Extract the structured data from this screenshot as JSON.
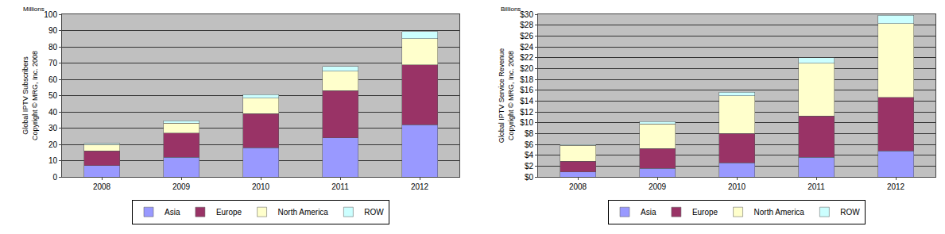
{
  "chart_data": [
    {
      "type": "bar",
      "stacked": true,
      "grid": true,
      "legend": "bottom",
      "annotations": [
        "Millions"
      ],
      "ylabel": [
        "Global IPTV Subscribers",
        "Copyright © MRG, Inc. 2008"
      ],
      "categories": [
        "2008",
        "2009",
        "2010",
        "2011",
        "2012"
      ],
      "series": [
        {
          "name": "Asia",
          "color": "#9999FF",
          "values": [
            7,
            12,
            18,
            24,
            32
          ]
        },
        {
          "name": "Europe",
          "color": "#993366",
          "values": [
            9,
            15,
            21,
            29,
            37
          ]
        },
        {
          "name": "North America",
          "color": "#FFFFCC",
          "values": [
            4,
            6,
            9.5,
            12,
            16
          ]
        },
        {
          "name": "ROW",
          "color": "#CCFFFF",
          "values": [
            0.5,
            1.5,
            2,
            3,
            4.5
          ]
        }
      ],
      "ylim": [
        0,
        100
      ],
      "yticks": [
        0,
        10,
        20,
        30,
        40,
        50,
        60,
        70,
        80,
        90,
        100
      ]
    },
    {
      "type": "bar",
      "stacked": true,
      "grid": true,
      "legend": "bottom",
      "annotations": [
        "Billions"
      ],
      "ylabel": [
        "Global IPTV Service Revenue",
        "Copyright © MRG, Inc. 2008"
      ],
      "categories": [
        "2008",
        "2009",
        "2010",
        "2011",
        "2012"
      ],
      "series": [
        {
          "name": "Asia",
          "color": "#9999FF",
          "values": [
            0.9,
            1.6,
            2.6,
            3.6,
            4.8
          ]
        },
        {
          "name": "Europe",
          "color": "#993366",
          "values": [
            2,
            3.6,
            5.4,
            7.6,
            9.9
          ]
        },
        {
          "name": "North America",
          "color": "#FFFFCC",
          "values": [
            2.9,
            4.6,
            7,
            9.8,
            13.6
          ]
        },
        {
          "name": "ROW",
          "color": "#CCFFFF",
          "values": [
            0.2,
            0.4,
            0.6,
            1,
            1.5
          ]
        }
      ],
      "ylim": [
        0,
        30
      ],
      "yticks": [
        {
          "value": 0,
          "label": "$0"
        },
        {
          "value": 2,
          "label": "$2"
        },
        {
          "value": 4,
          "label": "$4"
        },
        {
          "value": 6,
          "label": "$6"
        },
        {
          "value": 8,
          "label": "$8"
        },
        {
          "value": 10,
          "label": "$10"
        },
        {
          "value": 12,
          "label": "$12"
        },
        {
          "value": 14,
          "label": "$14"
        },
        {
          "value": 16,
          "label": "$16"
        },
        {
          "value": 18,
          "label": "$18"
        },
        {
          "value": 20,
          "label": "$20"
        },
        {
          "value": 22,
          "label": "$22"
        },
        {
          "value": 24,
          "label": "$24"
        },
        {
          "value": 26,
          "label": "$26"
        },
        {
          "value": 28,
          "label": "$28"
        },
        {
          "value": 30,
          "label": "$30"
        }
      ]
    }
  ]
}
